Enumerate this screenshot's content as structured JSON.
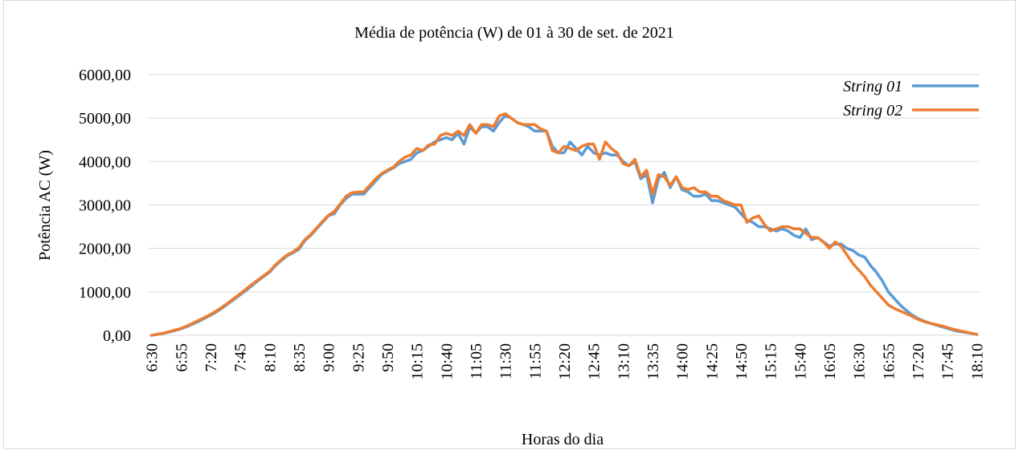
{
  "chart_data": {
    "type": "line",
    "title": "Média de potência (W) de 01 à 30 de set. de 2021",
    "x_label": "Horas do dia",
    "y_label": "Potência AC (W)",
    "categories": [
      "6:30",
      null,
      null,
      null,
      null,
      "6:55",
      null,
      null,
      null,
      null,
      "7:20",
      null,
      null,
      null,
      null,
      "7:45",
      null,
      null,
      null,
      null,
      "8:10",
      null,
      null,
      null,
      null,
      "8:35",
      null,
      null,
      null,
      null,
      "9:00",
      null,
      null,
      null,
      null,
      "9:25",
      null,
      null,
      null,
      null,
      "9:50",
      null,
      null,
      null,
      null,
      "10:15",
      null,
      null,
      null,
      null,
      "10:40",
      null,
      null,
      null,
      null,
      "11:05",
      null,
      null,
      null,
      null,
      "11:30",
      null,
      null,
      null,
      null,
      "11:55",
      null,
      null,
      null,
      null,
      "12:20",
      null,
      null,
      null,
      null,
      "12:45",
      null,
      null,
      null,
      null,
      "13:10",
      null,
      null,
      null,
      null,
      "13:35",
      null,
      null,
      null,
      null,
      "14:00",
      null,
      null,
      null,
      null,
      "14:25",
      null,
      null,
      null,
      null,
      "14:50",
      null,
      null,
      null,
      null,
      "15:15",
      null,
      null,
      null,
      null,
      "15:40",
      null,
      null,
      null,
      null,
      "16:05",
      null,
      null,
      null,
      null,
      "16:30",
      null,
      null,
      null,
      null,
      "16:55",
      null,
      null,
      null,
      null,
      "17:20",
      null,
      null,
      null,
      null,
      "17:45",
      null,
      null,
      null,
      null,
      "18:10"
    ],
    "series": [
      {
        "name": "String 01",
        "color": "#5b9bd5",
        "values": [
          0,
          20,
          45,
          75,
          110,
          150,
          200,
          260,
          320,
          390,
          460,
          540,
          630,
          730,
          830,
          930,
          1030,
          1140,
          1250,
          1350,
          1450,
          1600,
          1720,
          1830,
          1900,
          1980,
          2180,
          2300,
          2450,
          2600,
          2750,
          2800,
          3000,
          3150,
          3250,
          3250,
          3250,
          3400,
          3550,
          3700,
          3780,
          3850,
          3950,
          4000,
          4050,
          4200,
          4250,
          4350,
          4450,
          4500,
          4550,
          4500,
          4650,
          4400,
          4800,
          4650,
          4800,
          4800,
          4700,
          4900,
          5050,
          5000,
          4900,
          4850,
          4800,
          4700,
          4700,
          4700,
          4350,
          4200,
          4200,
          4450,
          4300,
          4150,
          4350,
          4200,
          4150,
          4200,
          4150,
          4150,
          4000,
          3900,
          4000,
          3600,
          3700,
          3050,
          3600,
          3750,
          3400,
          3650,
          3350,
          3300,
          3200,
          3200,
          3250,
          3100,
          3100,
          3050,
          3000,
          2950,
          2800,
          2650,
          2600,
          2500,
          2500,
          2450,
          2400,
          2450,
          2400,
          2300,
          2250,
          2450,
          2200,
          2250,
          2150,
          2050,
          2100,
          2100,
          2000,
          1950,
          1850,
          1800,
          1600,
          1450,
          1250,
          1000,
          850,
          700,
          580,
          470,
          390,
          330,
          280,
          240,
          200,
          160,
          120,
          90,
          70,
          45,
          20
        ]
      },
      {
        "name": "String 02",
        "color": "#ed7d31",
        "values": [
          0,
          25,
          50,
          85,
          120,
          160,
          215,
          280,
          345,
          410,
          480,
          560,
          650,
          750,
          850,
          950,
          1060,
          1170,
          1270,
          1370,
          1470,
          1620,
          1740,
          1850,
          1920,
          2020,
          2200,
          2320,
          2470,
          2620,
          2760,
          2850,
          3020,
          3200,
          3280,
          3300,
          3300,
          3450,
          3600,
          3720,
          3800,
          3870,
          4000,
          4100,
          4150,
          4300,
          4250,
          4380,
          4400,
          4600,
          4650,
          4600,
          4700,
          4600,
          4850,
          4650,
          4850,
          4850,
          4800,
          5050,
          5100,
          5000,
          4900,
          4850,
          4850,
          4850,
          4750,
          4700,
          4250,
          4200,
          4350,
          4300,
          4250,
          4350,
          4400,
          4400,
          4050,
          4450,
          4300,
          4200,
          3950,
          3900,
          4050,
          3650,
          3800,
          3250,
          3700,
          3650,
          3450,
          3650,
          3400,
          3350,
          3400,
          3300,
          3300,
          3200,
          3200,
          3100,
          3050,
          3000,
          3000,
          2600,
          2700,
          2750,
          2550,
          2400,
          2450,
          2500,
          2500,
          2450,
          2450,
          2350,
          2250,
          2250,
          2150,
          2000,
          2150,
          2050,
          1850,
          1650,
          1500,
          1350,
          1150,
          1000,
          850,
          700,
          620,
          560,
          500,
          440,
          370,
          320,
          280,
          250,
          220,
          180,
          140,
          110,
          80,
          50,
          25
        ]
      }
    ],
    "ylim": [
      0,
      6000
    ],
    "yticks": [
      {
        "value": 0,
        "label": "0,00"
      },
      {
        "value": 1000,
        "label": "1000,00"
      },
      {
        "value": 2000,
        "label": "2000,00"
      },
      {
        "value": 3000,
        "label": "3000,00"
      },
      {
        "value": 4000,
        "label": "4000,00"
      },
      {
        "value": 5000,
        "label": "5000,00"
      },
      {
        "value": 6000,
        "label": "6000,00"
      }
    ],
    "grid": true,
    "legend": "top-right"
  }
}
